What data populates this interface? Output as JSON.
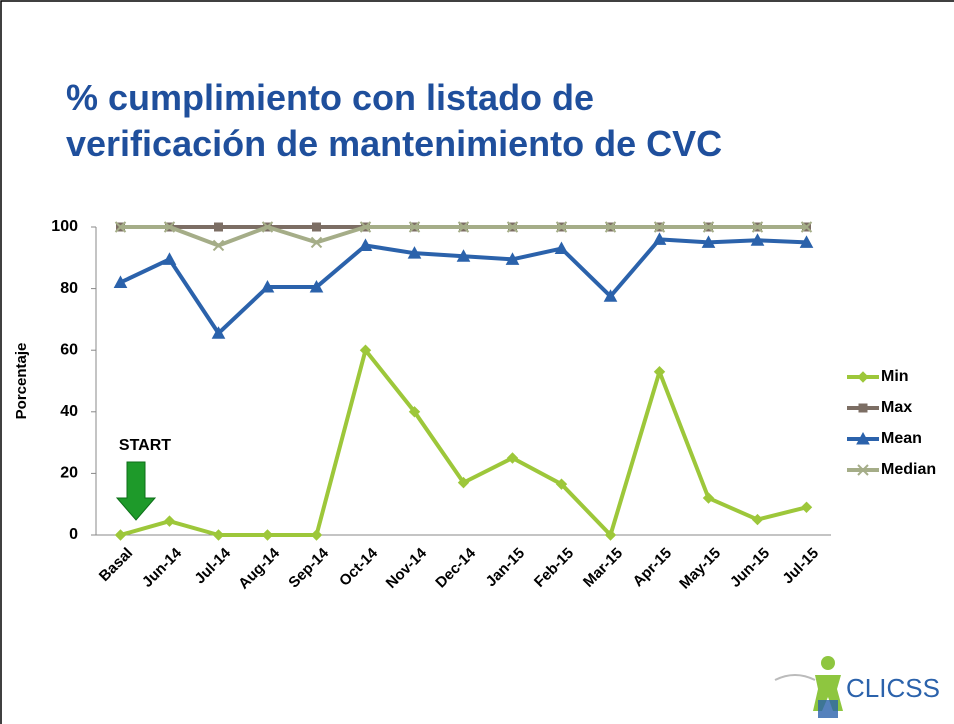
{
  "chart_data": {
    "type": "line",
    "title": "% cumplimiento con listado de verificación de mantenimiento de CVC",
    "ylabel": "Porcentaje",
    "categories": [
      "Basal",
      "Jun-14",
      "Jul-14",
      "Aug-14",
      "Sep-14",
      "Oct-14",
      "Nov-14",
      "Dec-14",
      "Jan-15",
      "Feb-15",
      "Mar-15",
      "Apr-15",
      "May-15",
      "Jun-15",
      "Jul-15"
    ],
    "series": [
      {
        "name": "Min",
        "color": "#9dc73a",
        "marker": "diamond",
        "values": [
          0,
          4.5,
          0,
          0,
          0,
          60,
          40,
          17,
          25,
          16.5,
          0,
          53,
          12,
          5,
          9
        ]
      },
      {
        "name": "Max",
        "color": "#7c6e64",
        "marker": "square",
        "values": [
          100,
          100,
          100,
          100,
          100,
          100,
          100,
          100,
          100,
          100,
          100,
          100,
          100,
          100,
          100
        ]
      },
      {
        "name": "Mean",
        "color": "#2b62ab",
        "marker": "triangle",
        "values": [
          82,
          89.5,
          65.5,
          80.5,
          80.5,
          94,
          91.5,
          90.5,
          89.5,
          93,
          77.5,
          96,
          95,
          95.7,
          95
        ]
      },
      {
        "name": "Median",
        "color": "#a5ad88",
        "marker": "x",
        "values": [
          100,
          100,
          94,
          100,
          95,
          100,
          100,
          100,
          100,
          100,
          100,
          100,
          100,
          100,
          100
        ]
      }
    ],
    "ylim": [
      0,
      100
    ],
    "yticks": [
      0,
      20,
      40,
      60,
      80,
      100
    ],
    "annotation": "START",
    "logo": "CLICSS",
    "legend": "right"
  }
}
